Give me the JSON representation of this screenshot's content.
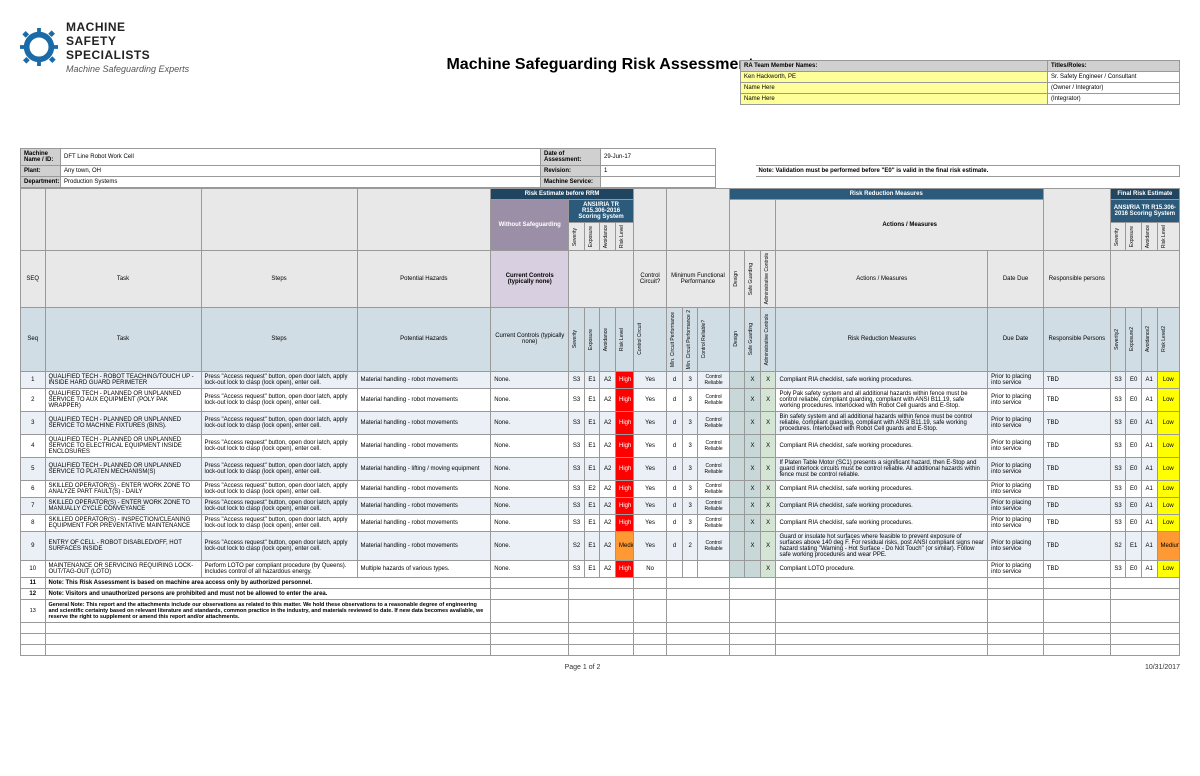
{
  "title": "Machine Safeguarding Risk Assessment",
  "logo": {
    "l1": "MACHINE",
    "l2": "SAFETY",
    "l3": "SPECIALISTS",
    "sub": "Machine Safeguarding Experts"
  },
  "team_header": {
    "names": "RA Team Member Names:",
    "titles": "Titles/Roles:"
  },
  "team": [
    {
      "name": "Ken Hackworth, PE",
      "title": "Sr. Safety Engineer / Consultant"
    },
    {
      "name": "Name Here",
      "title": "(Owner / Integrator)"
    },
    {
      "name": "Name Here",
      "title": "(Integrator)"
    }
  ],
  "meta": {
    "machine_lbl": "Machine Name / ID:",
    "machine": "DFT Line Robot Work Cell",
    "plant_lbl": "Plant:",
    "plant": "Any town, OH",
    "dept_lbl": "Department:",
    "dept": "Production Systems",
    "date_lbl": "Date of Assessment:",
    "date": "29-Jun-17",
    "rev_lbl": "Revision:",
    "rev": "1",
    "svc_lbl": "Machine Service:",
    "svc": "",
    "note": "Note:  Validation must be performed before \"E0\" is valid in the final risk estimate."
  },
  "bands": {
    "rrm": "Risk Estimate before RRM",
    "rrmeasures": "Risk Reduction Measures",
    "final": "Final Risk Estimate",
    "without": "Without Safeguarding",
    "ansi": "ANSI/RIA TR R15.306-2016 Scoring System",
    "controls": "Current Controls (typically none)",
    "risk_red": "Risk Reduction Measures",
    "resp": "Responsible Persons"
  },
  "cols": {
    "seq": "SEQ",
    "task": "Task",
    "steps": "Steps",
    "hazards": "Potential Hazards",
    "sev": "Severity",
    "exp": "Exposure",
    "avo": "Avoidance",
    "rl": "Risk Level",
    "cc": "Control Circuit?",
    "mfp": "Minimum Functional Performance",
    "mcp": "Min. Circuit Performance",
    "mcp2": "Min. Circuit Performance 2",
    "cr": "Control Reliable?",
    "design": "Design",
    "sg": "Safe Guarding",
    "admin": "Administrative Controls",
    "actions": "Actions / Measures",
    "due": "Date Due",
    "resp": "Responsible persons",
    "sev2": "Severity2",
    "exp2": "Exposure2",
    "avo2": "Avoidance2",
    "rl2": "Risk Level2",
    "due2": "Due Date",
    "seq2": "Seq",
    "cc2": "Control Circuit"
  },
  "rows": [
    {
      "n": "1",
      "task": "QUALIFIED TECH - ROBOT TEACHING/TOUCH UP - INSIDE HARD GUARD PERIMETER",
      "steps": "Press \"Access request\" button, open door latch, apply lock-out lock to clasp (lock open), enter cell.",
      "haz": "Material handling - robot movements",
      "ctrl": "None.",
      "s": "S3",
      "e": "E1",
      "a": "A2",
      "rl": "High",
      "cc": "Yes",
      "mcp": "d",
      "mcp2": "3",
      "cr": "Control Reliable",
      "d": "",
      "sg": "X",
      "ad": "X",
      "act": "Compliant RIA checklist, safe working procedures.",
      "due": "Prior to placing into service",
      "resp": "TBD",
      "s2": "S3",
      "e2": "E0",
      "a2": "A1",
      "rl2": "Low"
    },
    {
      "n": "2",
      "task": "QUALIFIED TECH - PLANNED OR UNPLANNED SERVICE TO AUX EQUIPMENT (POLY PAK WRAPPER)",
      "steps": "Press \"Access request\" button, open door latch, apply lock-out lock to clasp (lock open), enter cell.",
      "haz": "Material handling - robot movements",
      "ctrl": "None.",
      "s": "S3",
      "e": "E1",
      "a": "A2",
      "rl": "High",
      "cc": "Yes",
      "mcp": "d",
      "mcp2": "3",
      "cr": "Control Reliable",
      "d": "",
      "sg": "X",
      "ad": "X",
      "act": "Poly Pak safety system and all additional hazards within fence must be control reliable, compliant guarding, compliant with ANSI B11.19, safe working procedures. Interlocked with Robot Cell guards and E-Stop.",
      "due": "Prior to placing into service",
      "resp": "TBD",
      "s2": "S3",
      "e2": "E0",
      "a2": "A1",
      "rl2": "Low"
    },
    {
      "n": "3",
      "task": "QUALIFIED TECH - PLANNED OR UNPLANNED SERVICE TO MACHINE FIXTURES (BINS).",
      "steps": "Press \"Access request\" button, open door latch, apply lock-out lock to clasp (lock open), enter cell.",
      "haz": "Material handling - robot movements",
      "ctrl": "None.",
      "s": "S3",
      "e": "E1",
      "a": "A2",
      "rl": "High",
      "cc": "Yes",
      "mcp": "d",
      "mcp2": "3",
      "cr": "Control Reliable",
      "d": "",
      "sg": "X",
      "ad": "X",
      "act": "Bin safety system and all additional hazards within fence must be control reliable, compliant guarding, compliant with ANSI B11.19, safe working procedures. Interlocked with Robot Cell guards and E-Stop.",
      "due": "Prior to placing into service",
      "resp": "TBD",
      "s2": "S3",
      "e2": "E0",
      "a2": "A1",
      "rl2": "Low"
    },
    {
      "n": "4",
      "task": "QUALIFIED TECH - PLANNED OR UNPLANNED SERVICE TO ELECTRICAL EQUIPMENT INSIDE ENCLOSURES",
      "steps": "Press \"Access request\" button, open door latch, apply lock-out lock to clasp (lock open), enter cell.",
      "haz": "Material handling - robot movements",
      "ctrl": "None.",
      "s": "S3",
      "e": "E1",
      "a": "A2",
      "rl": "High",
      "cc": "Yes",
      "mcp": "d",
      "mcp2": "3",
      "cr": "Control Reliable",
      "d": "",
      "sg": "X",
      "ad": "X",
      "act": "Compliant RIA checklist, safe working procedures.",
      "due": "Prior to placing into service",
      "resp": "TBD",
      "s2": "S3",
      "e2": "E0",
      "a2": "A1",
      "rl2": "Low"
    },
    {
      "n": "5",
      "task": "QUALIFIED TECH - PLANNED OR UNPLANNED SERVICE TO PLATEN MECHANISM(S)",
      "steps": "Press \"Access request\" button, open door latch, apply lock-out lock to clasp (lock open), enter cell.",
      "haz": "Material handling - lifting / moving equipment",
      "ctrl": "None.",
      "s": "S3",
      "e": "E1",
      "a": "A2",
      "rl": "High",
      "cc": "Yes",
      "mcp": "d",
      "mcp2": "3",
      "cr": "Control Reliable",
      "d": "",
      "sg": "X",
      "ad": "X",
      "act": "If Platen Table Motor (SC1) presents a significant hazard, then E-Stop and guard interlock circuits must be control reliable.  All additional hazards within fence must be control reliable.",
      "due": "Prior to placing into service",
      "resp": "TBD",
      "s2": "S3",
      "e2": "E0",
      "a2": "A1",
      "rl2": "Low"
    },
    {
      "n": "6",
      "task": "SKILLED OPERATOR(S) - ENTER WORK ZONE TO ANALYZE PART FAULT(S) - DAILY",
      "steps": "Press \"Access request\" button, open door latch, apply lock-out lock to clasp (lock open), enter cell.",
      "haz": "Material handling - robot movements",
      "ctrl": "None.",
      "s": "S3",
      "e": "E2",
      "a": "A2",
      "rl": "High",
      "cc": "Yes",
      "mcp": "d",
      "mcp2": "3",
      "cr": "Control Reliable",
      "d": "",
      "sg": "X",
      "ad": "X",
      "act": "Compliant RIA checklist, safe working procedures.",
      "due": "Prior to placing into service",
      "resp": "TBD",
      "s2": "S3",
      "e2": "E0",
      "a2": "A1",
      "rl2": "Low"
    },
    {
      "n": "7",
      "task": "SKILLED OPERATOR(S) - ENTER WORK ZONE TO MANUALLY CYCLE CONVEYANCE",
      "steps": "Press \"Access request\" button, open door latch, apply lock-out lock to clasp (lock open), enter cell.",
      "haz": "Material handling - robot movements",
      "ctrl": "None.",
      "s": "S3",
      "e": "E1",
      "a": "A2",
      "rl": "High",
      "cc": "Yes",
      "mcp": "d",
      "mcp2": "3",
      "cr": "Control Reliable",
      "d": "",
      "sg": "X",
      "ad": "X",
      "act": "Compliant RIA checklist, safe working procedures.",
      "due": "Prior to placing into service",
      "resp": "TBD",
      "s2": "S3",
      "e2": "E0",
      "a2": "A1",
      "rl2": "Low"
    },
    {
      "n": "8",
      "task": "SKILLED OPERATOR(S) - INSPECTION/CLEANING EQUIPMENT FOR PREVENTATIVE MAINTENANCE",
      "steps": "Press \"Access request\" button, open door latch, apply lock-out lock to clasp (lock open), enter cell.",
      "haz": "Material handling - robot movements",
      "ctrl": "None.",
      "s": "S3",
      "e": "E1",
      "a": "A2",
      "rl": "High",
      "cc": "Yes",
      "mcp": "d",
      "mcp2": "3",
      "cr": "Control Reliable",
      "d": "",
      "sg": "X",
      "ad": "X",
      "act": "Compliant RIA checklist, safe working procedures.",
      "due": "Prior to placing into service",
      "resp": "TBD",
      "s2": "S3",
      "e2": "E0",
      "a2": "A1",
      "rl2": "Low"
    },
    {
      "n": "9",
      "task": "ENTRY OF CELL - ROBOT DISABLED/OFF, HOT SURFACES INSIDE",
      "steps": "Press \"Access request\" button, open door latch, apply lock-out lock to clasp (lock open), enter cell.",
      "haz": "Material handling - robot movements",
      "ctrl": "None.",
      "s": "S2",
      "e": "E1",
      "a": "A2",
      "rl": "Medium",
      "cc": "Yes",
      "mcp": "d",
      "mcp2": "2",
      "cr": "Control Reliable",
      "d": "",
      "sg": "X",
      "ad": "X",
      "act": "Guard or insulate hot surfaces where feasible to prevent exposure of surfaces above 140 deg F.  For residual risks, post ANSI compliant signs near hazard stating \"Warning - Hot Surface - Do Not Touch\" (or similar).  Follow safe working procedures and wear PPE.",
      "due": "Prior to placing into service",
      "resp": "TBD",
      "s2": "S2",
      "e2": "E1",
      "a2": "A1",
      "rl2": "Medium",
      "rl2_cls": "orange"
    },
    {
      "n": "10",
      "task": "MAINTENANCE OR SERVICING REQUIRING LOCK-OUT/TAG-OUT (LOTO)",
      "steps": "Perform LOTO per compliant procedure (by Queens).  Includes control of all hazardous energy.",
      "haz": "Multiple hazards of various types.",
      "ctrl": "None.",
      "s": "S3",
      "e": "E1",
      "a": "A2",
      "rl": "High",
      "cc": "No",
      "mcp": "",
      "mcp2": "",
      "cr": "",
      "d": "",
      "sg": "",
      "ad": "X",
      "act": "Compliant LOTO procedure.",
      "due": "Prior to placing into service",
      "resp": "TBD",
      "s2": "S3",
      "e2": "E0",
      "a2": "A1",
      "rl2": "Low"
    }
  ],
  "notes": [
    {
      "n": "11",
      "t": "Note:  This Risk Assessment is based on machine area access only by authorized personnel."
    },
    {
      "n": "12",
      "t": "Note:  Visitors and unauthorized persons are prohibited and must not be allowed to enter the area."
    }
  ],
  "general": {
    "n": "13",
    "t": "General Note: This report and the attachments include our observations as related to this matter. We hold these observations to a reasonable degree of engineering and scientific certainty based on relevant literature and standards, common practice in the industry, and materials reviewed to date.  If new data becomes available, we reserve the right to supplement or amend this report and/or attachments."
  },
  "footer": {
    "page": "Page 1 of 2",
    "date": "10/31/2017"
  }
}
